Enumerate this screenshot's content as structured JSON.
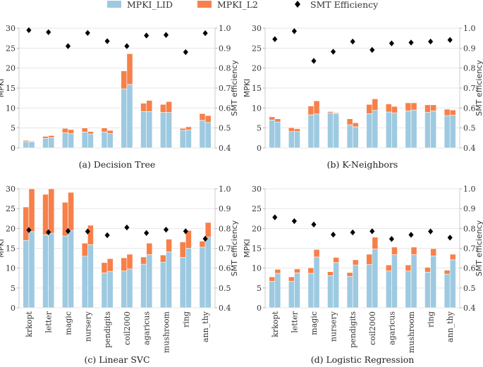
{
  "legend": {
    "items": [
      {
        "label": "MPKI_LID",
        "kind": "bar",
        "color": "#9ecae1"
      },
      {
        "label": "MPKI_L2",
        "kind": "bar",
        "color": "#f7804a"
      },
      {
        "label": "SMT Efficiency",
        "kind": "marker",
        "color": "#000000"
      }
    ]
  },
  "chart_data": [
    {
      "type": "bar",
      "stacked": true,
      "caption": "(a) Decision Tree",
      "categories": [
        "krkopt",
        "letter",
        "magic",
        "nursery",
        "pendigits",
        "coil2000",
        "agaricus",
        "mushroom",
        "ring",
        "ann_thy"
      ],
      "show_xticklabels": false,
      "ylabel": "MPKI",
      "y2label": "SMT efficiency",
      "ylim": [
        0,
        30
      ],
      "yticks": [
        0,
        5,
        10,
        15,
        20,
        25,
        30
      ],
      "y2lim": [
        0.4,
        1.0
      ],
      "y2ticks": [
        "0.4",
        "0.5",
        "0.6",
        "0.7",
        "0.8",
        "0.9",
        "1.0"
      ],
      "grid": true,
      "bars_per_category": 2,
      "series": [
        {
          "name": "MPKI_LID",
          "bar1": [
            1.6,
            2.4,
            3.8,
            4.0,
            4.0,
            14.8,
            9.1,
            8.9,
            4.4,
            6.9
          ],
          "bar2": [
            1.5,
            2.6,
            3.6,
            3.5,
            3.6,
            15.9,
            9.1,
            8.9,
            4.5,
            6.4
          ]
        },
        {
          "name": "MPKI_L2",
          "bar1": [
            0.3,
            0.5,
            1.1,
            1.0,
            1.0,
            4.5,
            2.1,
            2.0,
            0.5,
            1.7
          ],
          "bar2": [
            0.2,
            0.5,
            1.0,
            0.6,
            0.8,
            7.7,
            2.8,
            2.7,
            0.8,
            1.7
          ]
        },
        {
          "name": "SMT Efficiency",
          "axis": "right",
          "values": [
            0.99,
            0.98,
            0.91,
            0.976,
            0.935,
            0.91,
            0.963,
            0.966,
            0.88,
            0.975
          ]
        }
      ]
    },
    {
      "type": "bar",
      "stacked": true,
      "caption": "(b) K-Neighbors",
      "categories": [
        "krkopt",
        "letter",
        "magic",
        "nursery",
        "pendigits",
        "coil2000",
        "agaricus",
        "mushroom",
        "ring",
        "ann_thy"
      ],
      "show_xticklabels": false,
      "ylabel": "MPKI",
      "y2label": "SMT efficiency",
      "ylim": [
        0,
        30
      ],
      "yticks": [
        0,
        5,
        10,
        15,
        20,
        25,
        30
      ],
      "y2lim": [
        0.4,
        1.0
      ],
      "y2ticks": [
        "0.4",
        "0.5",
        "0.6",
        "0.7",
        "0.8",
        "0.9",
        "1.0"
      ],
      "grid": true,
      "bars_per_category": 2,
      "series": [
        {
          "name": "MPKI_LID",
          "bar1": [
            7.0,
            4.1,
            8.3,
            8.8,
            5.8,
            8.6,
            9.0,
            9.3,
            8.9,
            8.1
          ],
          "bar2": [
            6.5,
            4.1,
            8.5,
            8.6,
            5.3,
            9.4,
            8.8,
            9.5,
            9.3,
            8.2
          ]
        },
        {
          "name": "MPKI_L2",
          "bar1": [
            0.8,
            1.0,
            2.2,
            0.3,
            1.5,
            2.3,
            2.0,
            2.0,
            1.9,
            1.6
          ],
          "bar2": [
            0.8,
            0.7,
            3.3,
            0.2,
            1.0,
            2.9,
            1.6,
            1.8,
            1.5,
            1.3
          ]
        },
        {
          "name": "SMT Efficiency",
          "axis": "right",
          "values": [
            0.945,
            0.985,
            0.836,
            0.882,
            0.933,
            0.891,
            0.924,
            0.928,
            0.933,
            0.941
          ]
        }
      ]
    },
    {
      "type": "bar",
      "stacked": true,
      "caption": "(c) Linear SVC",
      "categories": [
        "krkopt",
        "letter",
        "magic",
        "nursery",
        "pendigits",
        "coil2000",
        "agaricus",
        "mushroom",
        "ring",
        "ann_thy"
      ],
      "show_xticklabels": true,
      "ylabel": "MPKI",
      "y2label": "SMT efficiency",
      "ylim": [
        0,
        30
      ],
      "yticks": [
        0,
        5,
        10,
        15,
        20,
        25,
        30
      ],
      "y2lim": [
        0.4,
        1.0
      ],
      "y2ticks": [
        "0.4",
        "0.5",
        "0.6",
        "0.7",
        "0.8",
        "0.9",
        "1.0"
      ],
      "grid": true,
      "bars_per_category": 2,
      "series": [
        {
          "name": "MPKI_LID",
          "bar1": [
            17.0,
            18.4,
            18.1,
            13.0,
            8.8,
            9.3,
            11.0,
            11.5,
            12.7,
            15.3
          ],
          "bar2": [
            19.2,
            18.8,
            19.5,
            15.9,
            9.2,
            9.8,
            13.4,
            14.1,
            15.0,
            17.8
          ]
        },
        {
          "name": "MPKI_L2",
          "bar1": [
            8.4,
            10.2,
            8.5,
            3.3,
            2.6,
            3.3,
            1.8,
            1.8,
            3.9,
            1.5
          ],
          "bar2": [
            10.8,
            11.2,
            9.6,
            4.9,
            3.2,
            3.7,
            2.9,
            3.2,
            4.5,
            3.7
          ]
        },
        {
          "name": "SMT Efficiency",
          "axis": "right",
          "values": [
            0.792,
            0.781,
            0.787,
            0.785,
            0.766,
            0.805,
            0.777,
            0.794,
            0.786,
            0.748
          ]
        }
      ]
    },
    {
      "type": "bar",
      "stacked": true,
      "caption": "(d) Logistic Regression",
      "categories": [
        "krkopt",
        "letter",
        "magic",
        "nursery",
        "pendigits",
        "coil2000",
        "agaricus",
        "mushroom",
        "ring",
        "ann_thy"
      ],
      "show_xticklabels": true,
      "ylabel": "MPKI",
      "y2label": "SMT efficiency",
      "ylim": [
        0,
        30
      ],
      "yticks": [
        0,
        5,
        10,
        15,
        20,
        25,
        30
      ],
      "y2lim": [
        0.4,
        1.0
      ],
      "y2ticks": [
        "0.4",
        "0.5",
        "0.6",
        "0.7",
        "0.8",
        "0.9",
        "1.0"
      ],
      "grid": true,
      "bars_per_category": 2,
      "series": [
        {
          "name": "MPKI_LID",
          "bar1": [
            6.7,
            6.7,
            8.7,
            8.1,
            7.9,
            10.9,
            9.3,
            9.3,
            9.0,
            8.5
          ],
          "bar2": [
            8.7,
            8.8,
            12.8,
            11.4,
            10.8,
            14.8,
            13.4,
            13.4,
            13.1,
            12.1
          ]
        },
        {
          "name": "MPKI_L2",
          "bar1": [
            1.1,
            1.1,
            1.4,
            1.0,
            1.0,
            2.6,
            1.5,
            1.5,
            1.2,
            1.0
          ],
          "bar2": [
            1.0,
            1.0,
            1.9,
            1.3,
            1.3,
            3.0,
            1.9,
            1.9,
            1.8,
            1.4
          ]
        },
        {
          "name": "SMT Efficiency",
          "axis": "right",
          "values": [
            0.856,
            0.837,
            0.82,
            0.769,
            0.78,
            0.786,
            0.747,
            0.768,
            0.785,
            0.754
          ]
        }
      ]
    }
  ]
}
